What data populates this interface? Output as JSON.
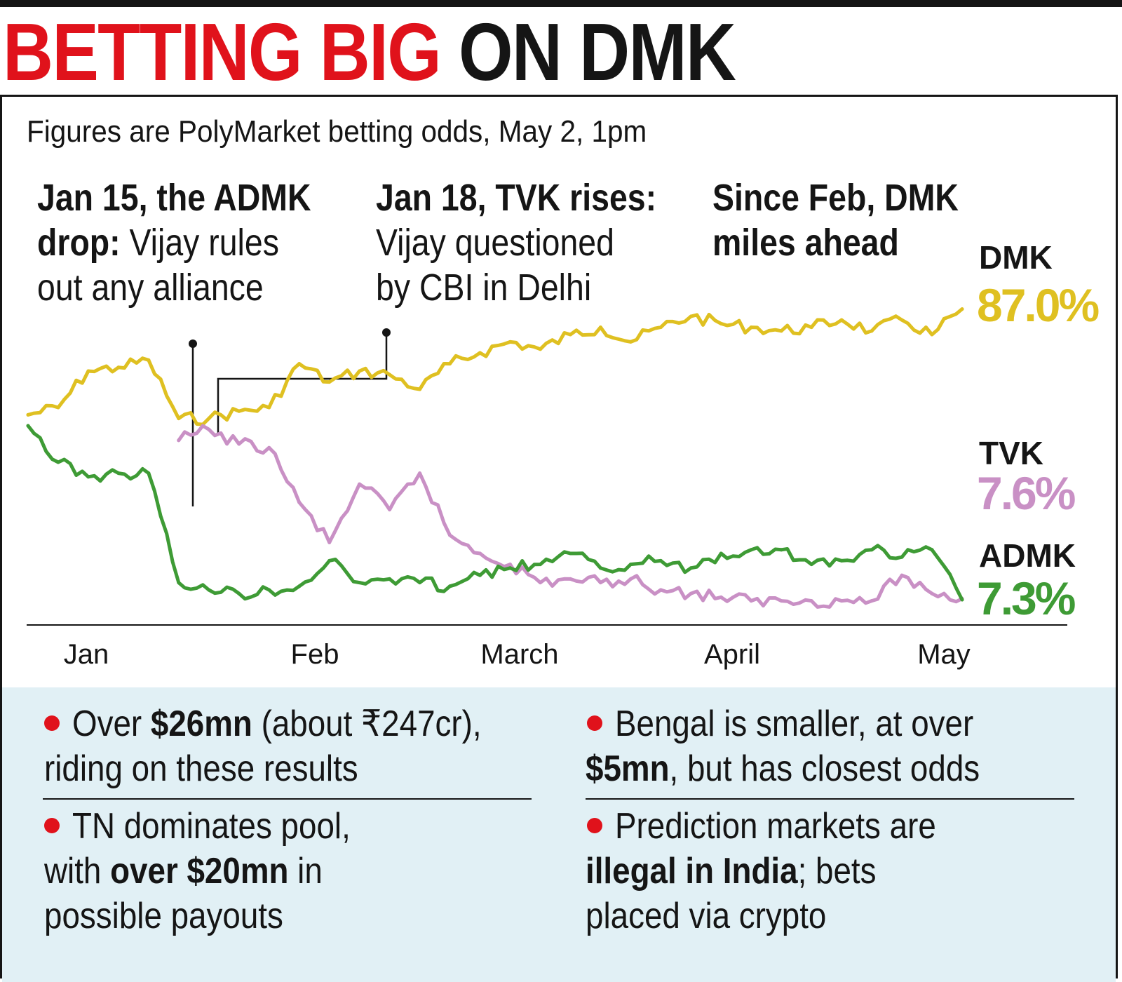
{
  "header": {
    "title_part1": "BETTING BIG",
    "title_part2": "ON DMK",
    "subtitle": "Figures are PolyMarket betting odds, May 2, 1pm"
  },
  "annotations": [
    {
      "bold": "Jan 15, the ADMK drop:",
      "bold_l1": "Jan 15, the ADMK",
      "bold_l2": "drop:",
      "rest_l2": " Vijay rules",
      "rest_l3": "out any alliance"
    },
    {
      "bold": "Jan 18, TVK rises:",
      "rest_l2": "Vijay questioned",
      "rest_l3": "by CBI in Delhi"
    },
    {
      "bold_l1": "Since Feb, DMK",
      "bold_l2": "miles ahead"
    }
  ],
  "colors": {
    "headline_red": "#e0121b",
    "DMK": "#dfc021",
    "TVK": "#c990c5",
    "ADMK": "#3e9b35",
    "facts_bg": "#e1f0f5"
  },
  "chart_data": {
    "type": "line",
    "title": "",
    "xlabel": "",
    "ylabel": "",
    "x_ticks": [
      "Jan",
      "Feb",
      "March",
      "April",
      "May"
    ],
    "x": [
      "Jan 1",
      "Jan 5",
      "Jan 9",
      "Jan 13",
      "Jan 15",
      "Jan 18",
      "Jan 22",
      "Jan 26",
      "Jan 30",
      "Feb 3",
      "Feb 7",
      "Feb 11",
      "Feb 15",
      "Feb 19",
      "Feb 23",
      "Feb 27",
      "Mar 3",
      "Mar 7",
      "Mar 11",
      "Mar 15",
      "Mar 19",
      "Mar 23",
      "Mar 27",
      "Mar 31",
      "Apr 4",
      "Apr 8",
      "Apr 12",
      "Apr 16",
      "Apr 20",
      "Apr 24",
      "Apr 28",
      "May 2"
    ],
    "series": [
      {
        "name": "DMK",
        "final_label": "87.0%",
        "values": [
          58,
          60,
          70,
          71,
          73,
          57,
          57,
          59,
          60,
          72,
          67,
          70,
          69,
          65,
          72,
          75,
          78,
          76,
          80,
          82,
          78,
          82,
          85,
          83,
          82,
          81,
          82,
          84,
          81,
          84,
          80,
          87
        ]
      },
      {
        "name": "TVK",
        "final_label": "7.6%",
        "values": [
          null,
          null,
          null,
          null,
          null,
          51,
          54,
          50,
          49,
          34,
          23,
          39,
          32,
          42,
          25,
          20,
          17,
          12,
          13,
          12,
          13,
          10,
          9,
          8,
          7,
          7,
          7,
          7,
          7,
          14,
          9,
          7.6
        ]
      },
      {
        "name": "ADMK",
        "final_label": "7.3%",
        "values": [
          55,
          45,
          41,
          42,
          42,
          12,
          10,
          9,
          10,
          11,
          18,
          12,
          13,
          12,
          11,
          14,
          16,
          17,
          20,
          16,
          17,
          18,
          16,
          20,
          21,
          21,
          17,
          18,
          21,
          19,
          21,
          7.3
        ]
      }
    ],
    "ylim": [
      0,
      100
    ],
    "grid": false,
    "legend": "right, end-of-line labels"
  },
  "facts": {
    "fact1": {
      "pre": "Over ",
      "bold": "$26mn",
      "post": " (about ₹247cr),",
      "line2": "riding on these results"
    },
    "fact2": {
      "line1": "TN dominates pool,",
      "pre2": "with ",
      "bold": "over $20mn",
      "post2": " in",
      "line3": "possible payouts"
    },
    "fact3": {
      "line1": "Bengal is smaller, at over",
      "bold": "$5mn",
      "post2": ", but has closest odds"
    },
    "fact4": {
      "line1": "Prediction markets are",
      "bold": "illegal in India",
      "post2": "; bets",
      "line3": "placed via crypto"
    }
  }
}
